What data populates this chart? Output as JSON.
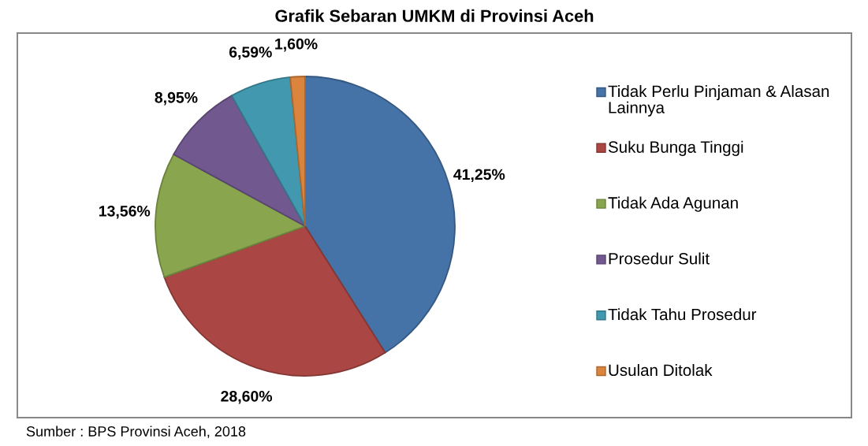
{
  "chart_data": {
    "type": "pie",
    "title": "Grafik Sebaran UMKM di Provinsi Aceh",
    "categories": [
      "Tidak Perlu Pinjaman & Alasan Lainnya",
      "Suku Bunga Tinggi",
      "Tidak Ada Agunan",
      "Prosedur Sulit",
      "Tidak Tahu Prosedur",
      "Usulan Ditolak"
    ],
    "values": [
      41.25,
      28.6,
      13.56,
      8.95,
      6.59,
      1.6
    ],
    "colors": [
      "#4572a7",
      "#aa4643",
      "#89a54e",
      "#71588f",
      "#4198af",
      "#db843d"
    ],
    "value_labels": [
      "41,25%",
      "28,60%",
      "13,56%",
      "8,95%",
      "6,59%",
      "1,60%"
    ],
    "legend": "right",
    "annotations": [
      "Sumber : BPS Provinsi Aceh, 2018"
    ]
  }
}
